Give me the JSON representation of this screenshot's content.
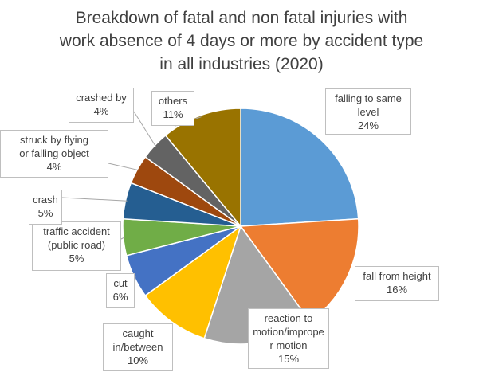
{
  "chart_data": {
    "type": "pie",
    "title_lines": [
      "Breakdown of fatal and non fatal injuries with",
      "work absence of 4 days or more by accident type",
      "in all industries (2020)"
    ],
    "unit": "%",
    "slices": [
      {
        "name_lines": [
          "falling to same",
          "level"
        ],
        "value": 24,
        "label": "24%",
        "color": "#5B9BD5"
      },
      {
        "name_lines": [
          "fall from height"
        ],
        "value": 16,
        "label": "16%",
        "color": "#ED7D31"
      },
      {
        "name_lines": [
          "reaction to",
          "motion/imprope",
          "r motion"
        ],
        "value": 15,
        "label": "15%",
        "color": "#A5A5A5"
      },
      {
        "name_lines": [
          "caught",
          "in/between"
        ],
        "value": 10,
        "label": "10%",
        "color": "#FFC000"
      },
      {
        "name_lines": [
          "cut"
        ],
        "value": 6,
        "label": "6%",
        "color": "#4472C4"
      },
      {
        "name_lines": [
          "traffic accident",
          "(public road)"
        ],
        "value": 5,
        "label": "5%",
        "color": "#70AD47"
      },
      {
        "name_lines": [
          "crash"
        ],
        "value": 5,
        "label": "5%",
        "color": "#255E91"
      },
      {
        "name_lines": [
          "struck by flying",
          "or falling object"
        ],
        "value": 4,
        "label": "4%",
        "color": "#9E480E"
      },
      {
        "name_lines": [
          "crashed by"
        ],
        "value": 4,
        "label": "4%",
        "color": "#636363"
      },
      {
        "name_lines": [
          "others"
        ],
        "value": 11,
        "label": "11%",
        "color": "#997300"
      }
    ],
    "legend": "none"
  }
}
